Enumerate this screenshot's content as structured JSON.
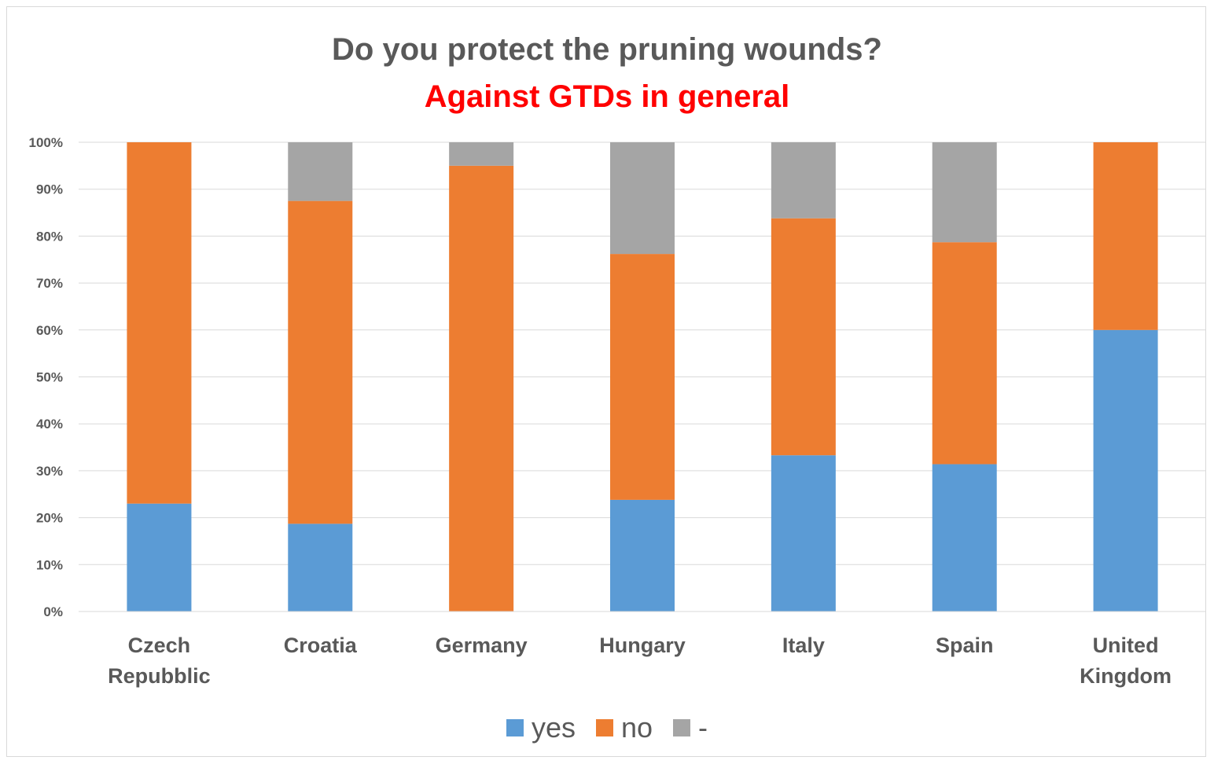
{
  "chart_data": {
    "type": "bar",
    "stacked": true,
    "title": "Do you protect the pruning wounds?",
    "subtitle": "Against GTDs in general",
    "categories": [
      [
        "Czech",
        "Repubblic"
      ],
      [
        "Croatia"
      ],
      [
        "Germany"
      ],
      [
        "Hungary"
      ],
      [
        "Italy"
      ],
      [
        "Spain"
      ],
      [
        "United",
        "Kingdom"
      ]
    ],
    "series": [
      {
        "name": "yes",
        "color": "#5b9bd5",
        "values": [
          23,
          18.7,
          0,
          23.8,
          33.3,
          31.4,
          60
        ]
      },
      {
        "name": "no",
        "color": "#ed7d31",
        "values": [
          77,
          68.8,
          95,
          52.4,
          50.5,
          47.3,
          40
        ]
      },
      {
        "name": "-",
        "color": "#a5a5a5",
        "values": [
          0,
          12.5,
          5,
          23.8,
          16.2,
          21.3,
          0
        ]
      }
    ],
    "ylim": [
      0,
      100
    ],
    "yticks": [
      "0%",
      "10%",
      "20%",
      "30%",
      "40%",
      "50%",
      "60%",
      "70%",
      "80%",
      "90%",
      "100%"
    ],
    "grid": true,
    "legend_position": "bottom",
    "colors": {
      "text": "#595959",
      "subtitle": "#ff0000",
      "grid": "#d9d9d9"
    }
  }
}
